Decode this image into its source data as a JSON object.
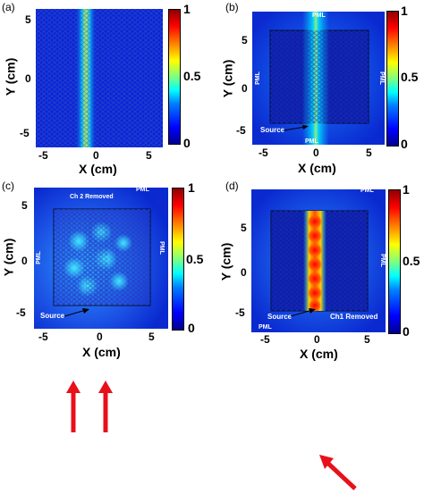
{
  "panels": {
    "a": {
      "label": "(a)"
    },
    "b": {
      "label": "(b)",
      "pml_top": "PML",
      "pml_bottom": "PML",
      "pml_left": "PML",
      "pml_right": "PML",
      "source": "Source"
    },
    "c": {
      "label": "(c)",
      "pml_top": "PML",
      "pml_left": "PML",
      "pml_right": "PML",
      "source": "Source",
      "note": "Ch 2 Removed"
    },
    "d": {
      "label": "(d)",
      "pml_top": "PML",
      "pml_bottom": "PML",
      "pml_right": "PML",
      "source": "Source",
      "note": "Ch1 Removed"
    }
  },
  "axes": {
    "xlabel": "X (cm)",
    "ylabel": "Y (cm)",
    "xticks": [
      "-5",
      "0",
      "5"
    ],
    "yticks": [
      "5",
      "0",
      "-5"
    ],
    "cbar_ticks": [
      "1",
      "0.5",
      "0"
    ]
  },
  "colors": {
    "background_field": "#0a23d8",
    "hot": "#ff0000",
    "arrow": "#e8101a"
  }
}
